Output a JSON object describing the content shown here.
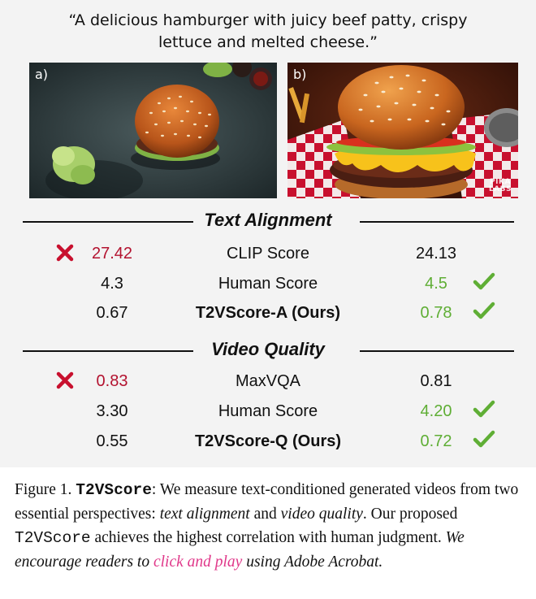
{
  "prompt": {
    "line1": "“A delicious hamburger with juicy beef patty, crispy",
    "line2": "lettuce and melted cheese.”"
  },
  "panels": {
    "a_label": "a)",
    "b_label": "b)",
    "watermark_line1": "PIKA",
    "watermark_line2": "LABS"
  },
  "text_alignment": {
    "title": "Text Alignment",
    "rows": [
      {
        "left": "27.42",
        "metric": "CLIP Score",
        "right": "24.13"
      },
      {
        "left": "4.3",
        "metric": "Human Score",
        "right": "4.5"
      },
      {
        "left": "0.67",
        "metric": "T2VScore-A (Ours)",
        "right": "0.78"
      }
    ]
  },
  "video_quality": {
    "title": "Video Quality",
    "rows": [
      {
        "left": "0.83",
        "metric": "MaxVQA",
        "right": "0.81"
      },
      {
        "left": "3.30",
        "metric": "Human Score",
        "right": "4.20"
      },
      {
        "left": "0.55",
        "metric": "T2VScore-Q (Ours)",
        "right": "0.72"
      }
    ]
  },
  "marks": {
    "cross": "red-cross-icon",
    "check": "green-check-icon",
    "red_color": "#b3122f",
    "green_color": "#5fae35"
  },
  "caption": {
    "fig": "Figure 1.",
    "name": "T2VScore",
    "p1": ": We measure text-conditioned generated videos from two essential perspectives: ",
    "ta": "text alignment",
    "and": " and ",
    "vq": "video quality",
    "p2": ". Our proposed ",
    "name2": "T2VScore",
    "p3": " achieves the highest correlation with human judgment. ",
    "enc": "We encourage readers to ",
    "link": "click and play",
    "p4": " using Adobe Acrobat."
  }
}
